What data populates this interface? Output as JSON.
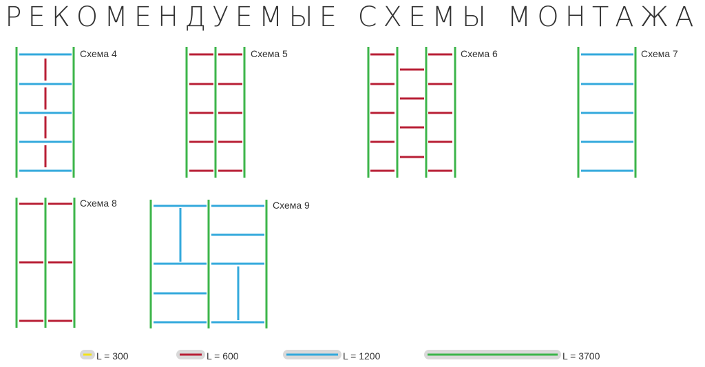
{
  "title": "РЕКОМЕНДУЕМЫЕ СХЕМЫ МОНТАЖА",
  "colors": {
    "green": "#3cb54a",
    "red": "#b81f35",
    "blue": "#33a9dc",
    "yellow": "#f2e21a",
    "pill": "#d9d9d9"
  },
  "schemes": [
    {
      "label": "Схема 4"
    },
    {
      "label": "Схема 5"
    },
    {
      "label": "Схема 6"
    },
    {
      "label": "Схема 7"
    },
    {
      "label": "Схема 8"
    },
    {
      "label": "Схема 9"
    }
  ],
  "legend": [
    {
      "label": "L = 300",
      "color": "yellow"
    },
    {
      "label": "L = 600",
      "color": "red"
    },
    {
      "label": "L = 1200",
      "color": "blue"
    },
    {
      "label": "L = 3700",
      "color": "green"
    }
  ]
}
